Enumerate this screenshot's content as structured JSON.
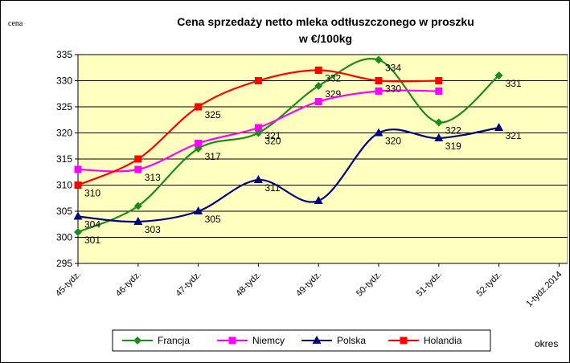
{
  "chart_data": {
    "type": "line",
    "title_lines": [
      "Cena sprzedaży netto mleka odtłuszczonego w proszku",
      "w €/100kg"
    ],
    "ylabel": "cena",
    "xlabel": "okres",
    "categories": [
      "45-tydz.",
      "46-tydz.",
      "47-tydz.",
      "48-tydz.",
      "49-tydz.",
      "50-tydz.",
      "51-tydz.",
      "52-tydz.",
      "1-tydz.2014"
    ],
    "ylim": [
      295,
      335
    ],
    "yticks": [
      295,
      300,
      305,
      310,
      315,
      320,
      325,
      330,
      335
    ],
    "grid": true,
    "series": [
      {
        "name": "Francja",
        "color": "#1a8c1a",
        "marker": "diamond",
        "values": [
          301,
          306,
          317,
          320,
          329,
          334,
          322,
          331,
          null
        ],
        "value_labels": [
          "301",
          null,
          "317",
          "320",
          "329",
          "334",
          "322",
          "331",
          null
        ]
      },
      {
        "name": "Niemcy",
        "color": "#ff00ff",
        "marker": "square",
        "values": [
          313,
          313,
          318,
          321,
          326,
          328,
          328,
          null,
          null
        ],
        "value_labels": [
          null,
          "313",
          null,
          "321",
          null,
          null,
          null,
          null,
          null
        ]
      },
      {
        "name": "Polska",
        "color": "#000080",
        "marker": "triangle",
        "values": [
          304,
          303,
          305,
          311,
          307,
          320,
          319,
          321,
          null
        ],
        "value_labels": [
          "304",
          "303",
          "305",
          "311",
          null,
          "320",
          "319",
          "321",
          null
        ]
      },
      {
        "name": "Holandia",
        "color": "#ff0000",
        "marker": "square",
        "values": [
          310,
          315,
          325,
          330,
          332,
          330,
          330,
          null,
          null
        ],
        "value_labels": [
          "310",
          null,
          "325",
          null,
          "332",
          "330",
          null,
          null,
          null
        ]
      }
    ]
  }
}
